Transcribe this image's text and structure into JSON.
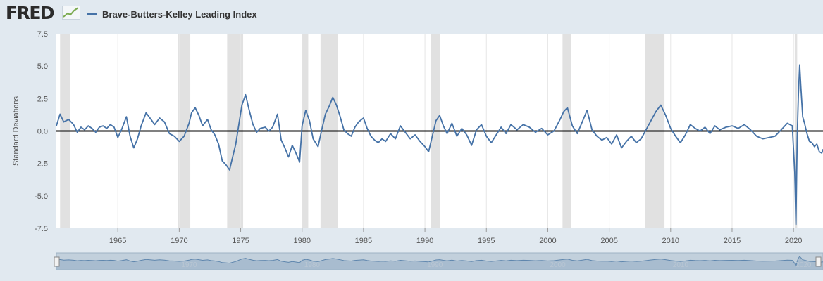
{
  "header": {
    "logo": "FRED",
    "legend_label": "Brave-Butters-Kelley Leading Index"
  },
  "colors": {
    "series": "#4572a7",
    "recession": "#e1e1e1",
    "zero_line": "#000000",
    "page_background": "#e1e9f0",
    "plot_background": "#ffffff",
    "navigator_fill": "#c2d0dc"
  },
  "chart_data": {
    "type": "line",
    "ylabel": "Standard Deviations",
    "ylim": [
      -7.5,
      7.5
    ],
    "xlim": [
      1960.0,
      2022.4
    ],
    "y_ticks": [
      7.5,
      5.0,
      2.5,
      0.0,
      -2.5,
      -5.0,
      -7.5
    ],
    "y_tick_labels": [
      "7.5",
      "5.0",
      "2.5",
      "0.0",
      "-2.5",
      "-5.0",
      "-7.5"
    ],
    "x_ticks": [
      1965,
      1970,
      1975,
      1980,
      1985,
      1990,
      1995,
      2000,
      2005,
      2010,
      2015,
      2020
    ],
    "x_tick_labels": [
      "1965",
      "1970",
      "1975",
      "1980",
      "1985",
      "1990",
      "1995",
      "2000",
      "2005",
      "2010",
      "2015",
      "2020"
    ],
    "navigator_labels": [
      "1970",
      "1980",
      "1990",
      "2000",
      "2010",
      "2020"
    ],
    "recessions": [
      [
        1960.3,
        1961.1
      ],
      [
        1969.9,
        1970.9
      ],
      [
        1973.9,
        1975.2
      ],
      [
        1980.0,
        1980.5
      ],
      [
        1981.5,
        1982.9
      ],
      [
        1990.5,
        1991.2
      ],
      [
        2001.2,
        2001.9
      ],
      [
        2007.9,
        2009.5
      ],
      [
        2020.1,
        2020.3
      ]
    ],
    "series": [
      {
        "name": "Brave-Butters-Kelley Leading Index",
        "x": [
          1960.0,
          1960.3,
          1960.6,
          1961.0,
          1961.4,
          1961.7,
          1962.0,
          1962.3,
          1962.6,
          1962.9,
          1963.2,
          1963.5,
          1963.8,
          1964.1,
          1964.4,
          1964.7,
          1965.0,
          1965.3,
          1965.7,
          1966.0,
          1966.3,
          1966.6,
          1966.9,
          1967.3,
          1967.7,
          1968.0,
          1968.4,
          1968.8,
          1969.2,
          1969.6,
          1970.0,
          1970.4,
          1970.8,
          1971.0,
          1971.3,
          1971.6,
          1971.9,
          1972.3,
          1972.6,
          1972.9,
          1973.2,
          1973.5,
          1973.8,
          1974.1,
          1974.3,
          1974.6,
          1974.9,
          1975.1,
          1975.4,
          1975.7,
          1976.0,
          1976.3,
          1976.6,
          1977.0,
          1977.3,
          1977.6,
          1978.0,
          1978.3,
          1978.6,
          1978.9,
          1979.2,
          1979.5,
          1979.8,
          1980.0,
          1980.3,
          1980.6,
          1980.9,
          1981.3,
          1981.6,
          1981.9,
          1982.2,
          1982.5,
          1982.8,
          1983.1,
          1983.4,
          1983.7,
          1984.0,
          1984.3,
          1984.6,
          1985.0,
          1985.3,
          1985.6,
          1985.9,
          1986.2,
          1986.5,
          1986.8,
          1987.2,
          1987.6,
          1988.0,
          1988.4,
          1988.8,
          1989.2,
          1989.6,
          1990.0,
          1990.3,
          1990.6,
          1990.9,
          1991.2,
          1991.5,
          1991.8,
          1992.2,
          1992.6,
          1993.0,
          1993.4,
          1993.8,
          1994.2,
          1994.6,
          1995.0,
          1995.4,
          1995.8,
          1996.2,
          1996.6,
          1997.0,
          1997.5,
          1998.0,
          1998.5,
          1999.0,
          1999.5,
          2000.0,
          2000.5,
          2001.0,
          2001.3,
          2001.6,
          2002.0,
          2002.4,
          2002.8,
          2003.2,
          2003.6,
          2004.0,
          2004.4,
          2004.8,
          2005.2,
          2005.6,
          2006.0,
          2006.4,
          2006.8,
          2007.2,
          2007.6,
          2008.0,
          2008.4,
          2008.8,
          2009.2,
          2009.6,
          2010.0,
          2010.4,
          2010.8,
          2011.2,
          2011.6,
          2012.0,
          2012.4,
          2012.8,
          2013.2,
          2013.6,
          2014.0,
          2014.5,
          2015.0,
          2015.5,
          2016.0,
          2016.5,
          2017.0,
          2017.5,
          2018.0,
          2018.5,
          2019.0,
          2019.5,
          2019.9,
          2020.1,
          2020.2,
          2020.3,
          2020.4,
          2020.5,
          2020.6,
          2020.75,
          2020.9,
          2021.1,
          2021.3,
          2021.5,
          2021.7,
          2021.9,
          2022.1,
          2022.3,
          2022.4
        ],
        "y": [
          0.4,
          1.3,
          0.7,
          0.9,
          0.5,
          -0.1,
          0.3,
          0.1,
          0.4,
          0.2,
          -0.1,
          0.3,
          0.4,
          0.2,
          0.5,
          0.3,
          -0.5,
          0.1,
          1.1,
          -0.4,
          -1.3,
          -0.6,
          0.4,
          1.4,
          0.9,
          0.5,
          1.0,
          0.7,
          -0.2,
          -0.4,
          -0.8,
          -0.4,
          0.6,
          1.4,
          1.8,
          1.2,
          0.4,
          0.9,
          0.1,
          -0.3,
          -1.0,
          -2.3,
          -2.6,
          -3.0,
          -2.2,
          -1.0,
          0.8,
          2.0,
          2.8,
          1.6,
          0.5,
          -0.1,
          0.2,
          0.3,
          0.0,
          0.3,
          1.3,
          -0.7,
          -1.3,
          -2.0,
          -1.1,
          -1.7,
          -2.4,
          0.4,
          1.6,
          0.8,
          -0.6,
          -1.2,
          0.1,
          1.3,
          1.9,
          2.6,
          2.0,
          1.1,
          0.1,
          -0.2,
          -0.4,
          0.3,
          0.7,
          1.0,
          0.2,
          -0.4,
          -0.7,
          -0.9,
          -0.6,
          -0.8,
          -0.2,
          -0.6,
          0.4,
          -0.1,
          -0.6,
          -0.3,
          -0.8,
          -1.2,
          -1.6,
          -0.4,
          0.8,
          1.2,
          0.4,
          -0.2,
          0.6,
          -0.4,
          0.2,
          -0.3,
          -1.1,
          0.1,
          0.5,
          -0.4,
          -0.9,
          -0.3,
          0.3,
          -0.2,
          0.5,
          0.1,
          0.5,
          0.3,
          -0.1,
          0.2,
          -0.3,
          0.0,
          0.9,
          1.5,
          1.8,
          0.4,
          -0.2,
          0.7,
          1.6,
          0.1,
          -0.4,
          -0.7,
          -0.5,
          -1.0,
          -0.3,
          -1.3,
          -0.8,
          -0.4,
          -0.9,
          -0.6,
          0.1,
          0.8,
          1.5,
          2.0,
          1.2,
          0.2,
          -0.4,
          -0.9,
          -0.3,
          0.5,
          0.2,
          0.0,
          0.3,
          -0.2,
          0.4,
          0.1,
          0.3,
          0.4,
          0.2,
          0.5,
          0.1,
          -0.4,
          -0.6,
          -0.5,
          -0.4,
          0.1,
          0.6,
          0.4,
          -3.2,
          -7.2,
          -0.5,
          2.8,
          5.1,
          3.4,
          1.1,
          0.6,
          -0.2,
          -0.8,
          -0.9,
          -1.2,
          -1.0,
          -1.6,
          -1.7,
          -1.4
        ]
      }
    ]
  }
}
